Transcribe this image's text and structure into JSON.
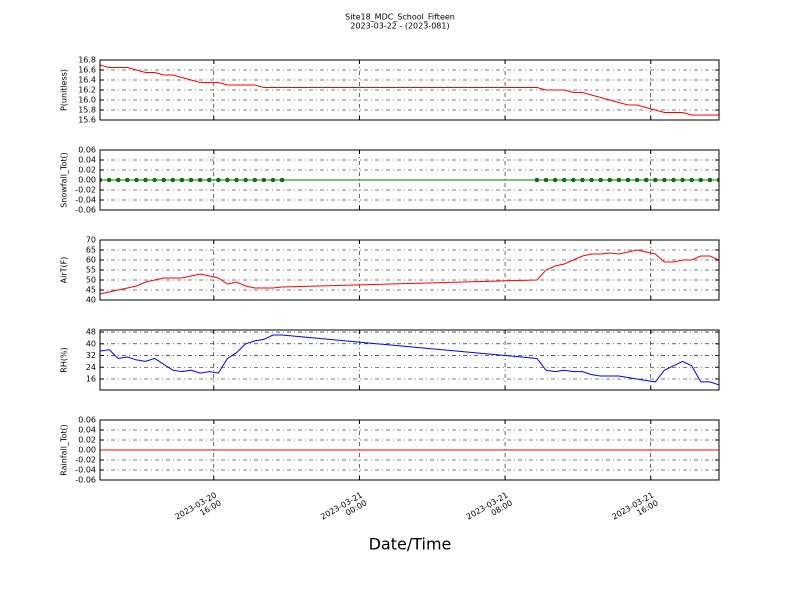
{
  "chart_data": {
    "type": "line",
    "title": "Site18_MDC_School_Fifteen",
    "subtitle": "2023-03-22 - (2023-081)",
    "xlabel": "Date/Time",
    "grid": true,
    "x": [
      "2023-03-20 09:45",
      "2023-03-20 10:15",
      "2023-03-20 10:45",
      "2023-03-20 11:15",
      "2023-03-20 11:45",
      "2023-03-20 12:15",
      "2023-03-20 12:45",
      "2023-03-20 13:15",
      "2023-03-20 13:45",
      "2023-03-20 14:15",
      "2023-03-20 14:45",
      "2023-03-20 15:15",
      "2023-03-20 15:45",
      "2023-03-20 16:15",
      "2023-03-20 16:45",
      "2023-03-20 17:15",
      "2023-03-20 17:45",
      "2023-03-20 18:15",
      "2023-03-20 18:45",
      "2023-03-20 19:15",
      "2023-03-20 19:45",
      "2023-03-21 09:45",
      "2023-03-21 10:15",
      "2023-03-21 10:45",
      "2023-03-21 11:15",
      "2023-03-21 11:45",
      "2023-03-21 12:15",
      "2023-03-21 12:45",
      "2023-03-21 13:15",
      "2023-03-21 13:45",
      "2023-03-21 14:15",
      "2023-03-21 14:45",
      "2023-03-21 15:15",
      "2023-03-21 15:45",
      "2023-03-21 16:15",
      "2023-03-21 16:45",
      "2023-03-21 17:15",
      "2023-03-21 17:45",
      "2023-03-21 18:15",
      "2023-03-21 18:45",
      "2023-03-21 19:15",
      "2023-03-21 19:45"
    ],
    "xlim": [
      "2023-03-20 09:45",
      "2023-03-21 19:45"
    ],
    "xticks": [
      {
        "value": "2023-03-20 16:00",
        "label": "2023-03-20\n16:00"
      },
      {
        "value": "2023-03-21 00:00",
        "label": "2023-03-21\n00:00"
      },
      {
        "value": "2023-03-21 08:00",
        "label": "2023-03-21\n08:00"
      },
      {
        "value": "2023-03-21 16:00",
        "label": "2023-03-21\n16:00"
      }
    ],
    "panels": [
      {
        "ylabel": "P(unitless)",
        "color": "#ff0000",
        "marker": null,
        "ylim": [
          15.6,
          16.8
        ],
        "yticks": [
          15.6,
          15.8,
          {
            "value": 16,
            "label": "16.0"
          },
          16.2,
          16.4,
          16.6,
          16.8
        ],
        "values": [
          16.7,
          16.65,
          16.65,
          16.65,
          16.6,
          16.55,
          16.55,
          16.5,
          16.5,
          16.45,
          16.4,
          16.35,
          16.35,
          16.35,
          16.3,
          16.3,
          16.3,
          16.3,
          16.25,
          16.25,
          16.25,
          16.25,
          16.2,
          16.2,
          16.2,
          16.15,
          16.15,
          16.1,
          16.05,
          16.0,
          15.95,
          15.9,
          15.9,
          15.85,
          15.8,
          15.75,
          15.75,
          15.75,
          15.7,
          15.7,
          15.7,
          15.7
        ]
      },
      {
        "ylabel": "Snowfall_Tot()",
        "color": "#008000",
        "marker": "o",
        "ylim": [
          -0.06,
          0.06
        ],
        "yticks": [
          -0.06,
          -0.04,
          -0.02,
          {
            "value": 0,
            "label": "0.00"
          },
          0.02,
          0.04,
          0.06
        ],
        "values": [
          0,
          0,
          0,
          0,
          0,
          0,
          0,
          0,
          0,
          0,
          0,
          0,
          0,
          0,
          0,
          0,
          0,
          0,
          0,
          0,
          0,
          0,
          0,
          0,
          0,
          0,
          0,
          0,
          0,
          0,
          0,
          0,
          0,
          0,
          0,
          0,
          0,
          0,
          0,
          0,
          0,
          0
        ]
      },
      {
        "ylabel": "AirT(F)",
        "color": "#ff0000",
        "marker": null,
        "ylim": [
          40,
          70
        ],
        "yticks": [
          40,
          45,
          50,
          55,
          60,
          65,
          70
        ],
        "values": [
          43,
          44,
          45,
          46,
          47,
          49,
          50,
          51,
          51,
          51,
          52,
          53,
          52,
          51,
          48,
          49,
          47,
          46,
          46,
          46,
          46.5,
          50,
          55,
          57,
          58,
          60,
          62,
          63,
          63,
          63.5,
          63,
          64,
          65,
          64,
          63,
          59,
          59,
          60,
          60,
          62,
          62,
          60
        ]
      },
      {
        "ylabel": "RH(%)",
        "color": "#0000ff",
        "marker": null,
        "ylim": [
          8.5,
          49.4
        ],
        "yticks": [
          16,
          24,
          32,
          40,
          48
        ],
        "values": [
          35,
          36,
          30,
          31,
          29,
          28,
          30,
          26,
          22,
          21,
          22,
          20,
          21,
          20,
          30,
          34,
          40,
          42,
          43,
          46,
          46,
          30,
          22,
          21,
          22,
          21,
          21,
          19,
          18,
          18,
          18,
          17,
          16,
          15,
          14,
          22,
          25,
          28,
          25,
          14,
          14,
          12
        ]
      },
      {
        "ylabel": "Rainfall_Tot()",
        "color": "#ff0000",
        "marker": null,
        "ylim": [
          -0.06,
          0.06
        ],
        "yticks": [
          -0.06,
          -0.04,
          -0.02,
          {
            "value": 0,
            "label": "0.00"
          },
          0.02,
          0.04,
          0.06
        ],
        "values": [
          0,
          0,
          0,
          0,
          0,
          0,
          0,
          0,
          0,
          0,
          0,
          0,
          0,
          0,
          0,
          0,
          0,
          0,
          0,
          0,
          0,
          0,
          0,
          0,
          0,
          0,
          0,
          0,
          0,
          0,
          0,
          0,
          0,
          0,
          0,
          0,
          0,
          0,
          0,
          0,
          0,
          0
        ]
      }
    ]
  }
}
